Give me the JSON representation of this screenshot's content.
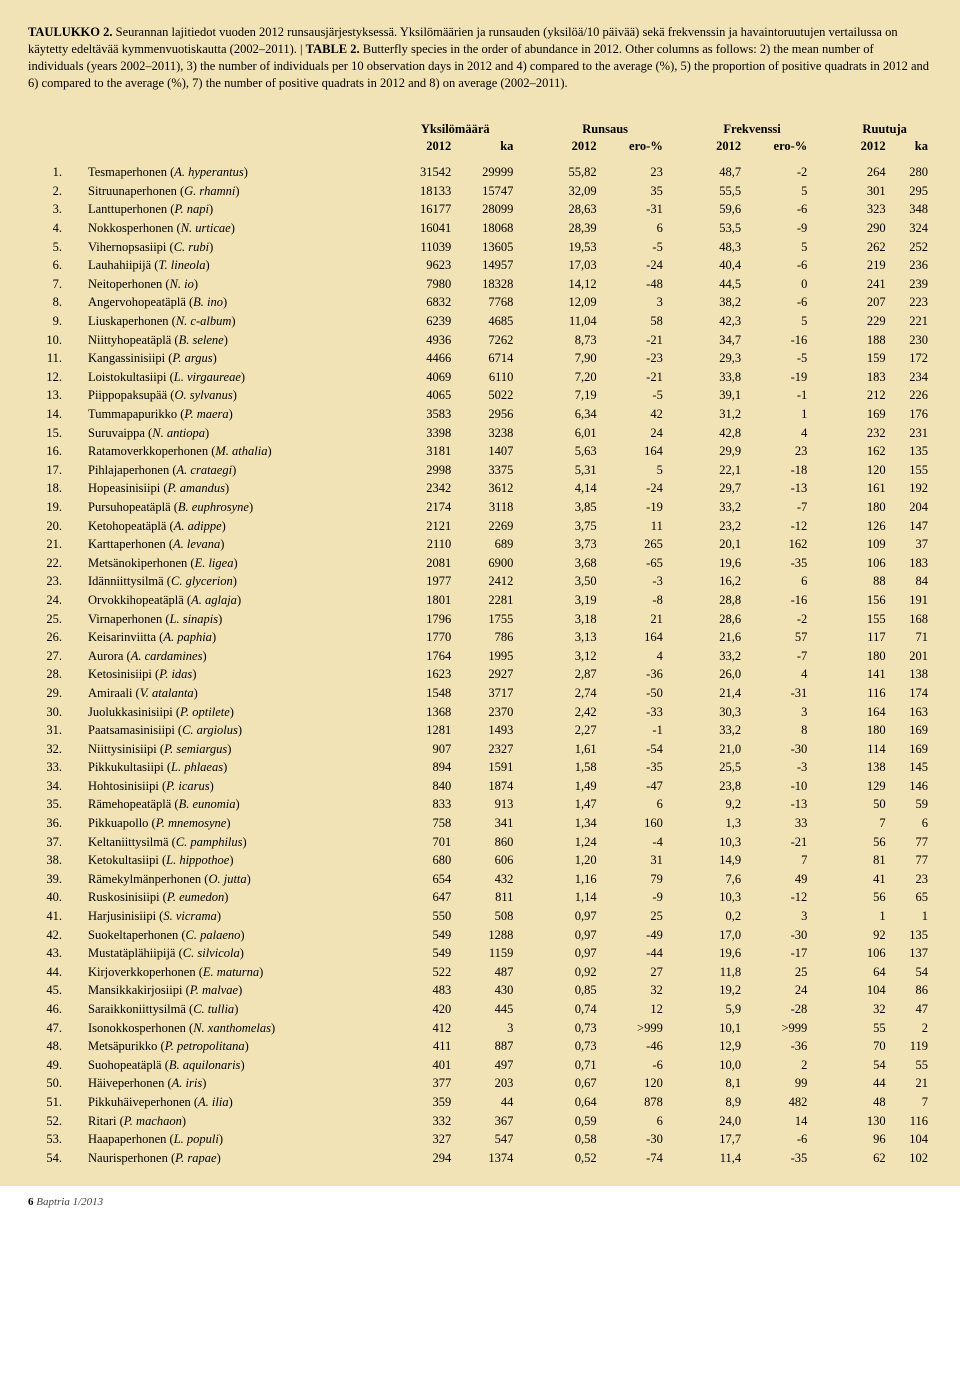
{
  "caption_html": "<span class='bold'>TAULUKKO 2.</span> Seurannan lajitiedot vuoden 2012 runsausjärjestyksessä. Yksilömäärien ja runsauden (yksilöä/10 päivää) sekä frekvenssin ja havaintoruutujen vertailussa on käytetty edeltävää kymmenvuotiskautta (2002–2011). | <span class='bold'>TABLE 2.</span> Butterfly species in the order of abundance in 2012. Other columns as follows: 2) the mean number of individuals (years 2002–2011), 3) the number of individuals per 10 observation days in 2012 and 4) compared to the average (%), 5) the proportion of positive quadrats in 2012 and 6) compared to the average (%), 7) the number of positive quadrats in 2012 and 8) on average (2002–2011).",
  "groups": [
    "Yksilömäärä",
    "Runsaus",
    "Frekvenssi",
    "Ruutuja"
  ],
  "sub": [
    "2012",
    "ka",
    "2012",
    "ero-%",
    "2012",
    "ero-%",
    "2012",
    "ka"
  ],
  "rows": [
    [
      "1.",
      "Tesmaperhonen (",
      "A. hyperantus",
      ")",
      "31542",
      "29999",
      "55,82",
      "23",
      "48,7",
      "-2",
      "264",
      "280"
    ],
    [
      "2.",
      "Sitruunaperhonen (",
      "G. rhamni",
      ")",
      "18133",
      "15747",
      "32,09",
      "35",
      "55,5",
      "5",
      "301",
      "295"
    ],
    [
      "3.",
      "Lanttuperhonen (",
      "P. napi",
      ")",
      "16177",
      "28099",
      "28,63",
      "-31",
      "59,6",
      "-6",
      "323",
      "348"
    ],
    [
      "4.",
      "Nokkosperhonen (",
      "N. urticae",
      ")",
      "16041",
      "18068",
      "28,39",
      "6",
      "53,5",
      "-9",
      "290",
      "324"
    ],
    [
      "5.",
      "Vihernopsasiipi (",
      "C. rubi",
      ")",
      "11039",
      "13605",
      "19,53",
      "-5",
      "48,3",
      "5",
      "262",
      "252"
    ],
    [
      "6.",
      "Lauhahiipijä (",
      "T. lineola",
      ")",
      "9623",
      "14957",
      "17,03",
      "-24",
      "40,4",
      "-6",
      "219",
      "236"
    ],
    [
      "7.",
      "Neitoperhonen (",
      "N. io",
      ")",
      "7980",
      "18328",
      "14,12",
      "-48",
      "44,5",
      "0",
      "241",
      "239"
    ],
    [
      "8.",
      "Angervohopeatäplä (",
      "B. ino",
      ")",
      "6832",
      "7768",
      "12,09",
      "3",
      "38,2",
      "-6",
      "207",
      "223"
    ],
    [
      "9.",
      "Liuskaperhonen (",
      "N. c-album",
      ")",
      "6239",
      "4685",
      "11,04",
      "58",
      "42,3",
      "5",
      "229",
      "221"
    ],
    [
      "10.",
      "Niittyhopeatäplä (",
      "B. selene",
      ")",
      "4936",
      "7262",
      "8,73",
      "-21",
      "34,7",
      "-16",
      "188",
      "230"
    ],
    [
      "11.",
      "Kangassinisiipi (",
      "P. argus",
      ")",
      "4466",
      "6714",
      "7,90",
      "-23",
      "29,3",
      "-5",
      "159",
      "172"
    ],
    [
      "12.",
      "Loistokultasiipi (",
      "L. virgaureae",
      ")",
      "4069",
      "6110",
      "7,20",
      "-21",
      "33,8",
      "-19",
      "183",
      "234"
    ],
    [
      "13.",
      "Piippopaksupää (",
      "O. sylvanus",
      ")",
      "4065",
      "5022",
      "7,19",
      "-5",
      "39,1",
      "-1",
      "212",
      "226"
    ],
    [
      "14.",
      "Tummapapurikko (",
      "P. maera",
      ")",
      "3583",
      "2956",
      "6,34",
      "42",
      "31,2",
      "1",
      "169",
      "176"
    ],
    [
      "15.",
      "Suruvaippa (",
      "N. antiopa",
      ")",
      "3398",
      "3238",
      "6,01",
      "24",
      "42,8",
      "4",
      "232",
      "231"
    ],
    [
      "16.",
      "Ratamoverkkoperhonen (",
      "M. athalia",
      ")",
      "3181",
      "1407",
      "5,63",
      "164",
      "29,9",
      "23",
      "162",
      "135"
    ],
    [
      "17.",
      "Pihlajaperhonen (",
      "A. crataegi",
      ")",
      "2998",
      "3375",
      "5,31",
      "5",
      "22,1",
      "-18",
      "120",
      "155"
    ],
    [
      "18.",
      "Hopeasinisiipi (",
      "P. amandus",
      ")",
      "2342",
      "3612",
      "4,14",
      "-24",
      "29,7",
      "-13",
      "161",
      "192"
    ],
    [
      "19.",
      "Pursuhopeatäplä (",
      "B. euphrosyne",
      ")",
      "2174",
      "3118",
      "3,85",
      "-19",
      "33,2",
      "-7",
      "180",
      "204"
    ],
    [
      "20.",
      "Ketohopeatäplä (",
      "A. adippe",
      ")",
      "2121",
      "2269",
      "3,75",
      "11",
      "23,2",
      "-12",
      "126",
      "147"
    ],
    [
      "21.",
      "Karttaperhonen (",
      "A. levana",
      ")",
      "2110",
      "689",
      "3,73",
      "265",
      "20,1",
      "162",
      "109",
      "37"
    ],
    [
      "22.",
      "Metsänokiperhonen (",
      "E. ligea",
      ")",
      "2081",
      "6900",
      "3,68",
      "-65",
      "19,6",
      "-35",
      "106",
      "183"
    ],
    [
      "23.",
      "Idänniittysilmä (",
      "C. glycerion",
      ")",
      "1977",
      "2412",
      "3,50",
      "-3",
      "16,2",
      "6",
      "88",
      "84"
    ],
    [
      "24.",
      "Orvokkihopeatäplä (",
      "A. aglaja",
      ")",
      "1801",
      "2281",
      "3,19",
      "-8",
      "28,8",
      "-16",
      "156",
      "191"
    ],
    [
      "25.",
      "Virnaperhonen (",
      "L. sinapis",
      ")",
      "1796",
      "1755",
      "3,18",
      "21",
      "28,6",
      "-2",
      "155",
      "168"
    ],
    [
      "26.",
      "Keisarinviitta (",
      "A. paphia",
      ")",
      "1770",
      "786",
      "3,13",
      "164",
      "21,6",
      "57",
      "117",
      "71"
    ],
    [
      "27.",
      "Aurora (",
      "A. cardamines",
      ")",
      "1764",
      "1995",
      "3,12",
      "4",
      "33,2",
      "-7",
      "180",
      "201"
    ],
    [
      "28.",
      "Ketosinisiipi (",
      "P. idas",
      ")",
      "1623",
      "2927",
      "2,87",
      "-36",
      "26,0",
      "4",
      "141",
      "138"
    ],
    [
      "29.",
      "Amiraali (",
      "V. atalanta",
      ")",
      "1548",
      "3717",
      "2,74",
      "-50",
      "21,4",
      "-31",
      "116",
      "174"
    ],
    [
      "30.",
      "Juolukkasinisiipi (",
      "P. optilete",
      ")",
      "1368",
      "2370",
      "2,42",
      "-33",
      "30,3",
      "3",
      "164",
      "163"
    ],
    [
      "31.",
      "Paatsamasinisiipi (",
      "C. argiolus",
      ")",
      "1281",
      "1493",
      "2,27",
      "-1",
      "33,2",
      "8",
      "180",
      "169"
    ],
    [
      "32.",
      "Niittysinisiipi (",
      "P. semiargus",
      ")",
      "907",
      "2327",
      "1,61",
      "-54",
      "21,0",
      "-30",
      "114",
      "169"
    ],
    [
      "33.",
      "Pikkukultasiipi (",
      "L. phlaeas",
      ")",
      "894",
      "1591",
      "1,58",
      "-35",
      "25,5",
      "-3",
      "138",
      "145"
    ],
    [
      "34.",
      "Hohtosinisiipi (",
      "P. icarus",
      ")",
      "840",
      "1874",
      "1,49",
      "-47",
      "23,8",
      "-10",
      "129",
      "146"
    ],
    [
      "35.",
      "Rämehopeatäplä (",
      "B. eunomia",
      ")",
      "833",
      "913",
      "1,47",
      "6",
      "9,2",
      "-13",
      "50",
      "59"
    ],
    [
      "36.",
      "Pikkuapollo (",
      "P. mnemosyne",
      ")",
      "758",
      "341",
      "1,34",
      "160",
      "1,3",
      "33",
      "7",
      "6"
    ],
    [
      "37.",
      "Keltaniittysilmä (",
      "C. pamphilus",
      ")",
      "701",
      "860",
      "1,24",
      "-4",
      "10,3",
      "-21",
      "56",
      "77"
    ],
    [
      "38.",
      "Ketokultasiipi (",
      "L. hippothoe",
      ")",
      "680",
      "606",
      "1,20",
      "31",
      "14,9",
      "7",
      "81",
      "77"
    ],
    [
      "39.",
      "Rämekylmänperhonen (",
      "O. jutta",
      ")",
      "654",
      "432",
      "1,16",
      "79",
      "7,6",
      "49",
      "41",
      "23"
    ],
    [
      "40.",
      "Ruskosinisiipi (",
      "P. eumedon",
      ")",
      "647",
      "811",
      "1,14",
      "-9",
      "10,3",
      "-12",
      "56",
      "65"
    ],
    [
      "41.",
      "Harjusinisiipi (",
      "S. vicrama",
      ")",
      "550",
      "508",
      "0,97",
      "25",
      "0,2",
      "3",
      "1",
      "1"
    ],
    [
      "42.",
      "Suokeltaperhonen (",
      "C. palaeno",
      ")",
      "549",
      "1288",
      "0,97",
      "-49",
      "17,0",
      "-30",
      "92",
      "135"
    ],
    [
      "43.",
      "Mustatäplähiipijä (",
      "C. silvicola",
      ")",
      "549",
      "1159",
      "0,97",
      "-44",
      "19,6",
      "-17",
      "106",
      "137"
    ],
    [
      "44.",
      "Kirjoverkkoperhonen (",
      "E. maturna",
      ")",
      "522",
      "487",
      "0,92",
      "27",
      "11,8",
      "25",
      "64",
      "54"
    ],
    [
      "45.",
      "Mansikkakirjosiipi (",
      "P. malvae",
      ")",
      "483",
      "430",
      "0,85",
      "32",
      "19,2",
      "24",
      "104",
      "86"
    ],
    [
      "46.",
      "Saraikkoniittysilmä (",
      "C. tullia",
      ")",
      "420",
      "445",
      "0,74",
      "12",
      "5,9",
      "-28",
      "32",
      "47"
    ],
    [
      "47.",
      "Isonokkosperhonen (",
      "N. xanthomelas",
      ")",
      "412",
      "3",
      "0,73",
      ">999",
      "10,1",
      ">999",
      "55",
      "2"
    ],
    [
      "48.",
      "Metsäpurikko (",
      "P. petropolitana",
      ")",
      "411",
      "887",
      "0,73",
      "-46",
      "12,9",
      "-36",
      "70",
      "119"
    ],
    [
      "49.",
      "Suohopeatäplä (",
      "B. aquilonaris",
      ")",
      "401",
      "497",
      "0,71",
      "-6",
      "10,0",
      "2",
      "54",
      "55"
    ],
    [
      "50.",
      "Häiveperhonen (",
      "A. iris",
      ")",
      "377",
      "203",
      "0,67",
      "120",
      "8,1",
      "99",
      "44",
      "21"
    ],
    [
      "51.",
      "Pikkuhäiveperhonen (",
      "A. ilia",
      ")",
      "359",
      "44",
      "0,64",
      "878",
      "8,9",
      "482",
      "48",
      "7"
    ],
    [
      "52.",
      "Ritari (",
      "P. machaon",
      ")",
      "332",
      "367",
      "0,59",
      "6",
      "24,0",
      "14",
      "130",
      "116"
    ],
    [
      "53.",
      "Haapaperhonen (",
      "L. populi",
      ")",
      "327",
      "547",
      "0,58",
      "-30",
      "17,7",
      "-6",
      "96",
      "104"
    ],
    [
      "54.",
      "Naurisperhonen (",
      "P. rapae",
      ")",
      "294",
      "1374",
      "0,52",
      "-74",
      "11,4",
      "-35",
      "62",
      "102"
    ]
  ],
  "footer_page": "6",
  "footer_journal": "Baptria 1/2013"
}
